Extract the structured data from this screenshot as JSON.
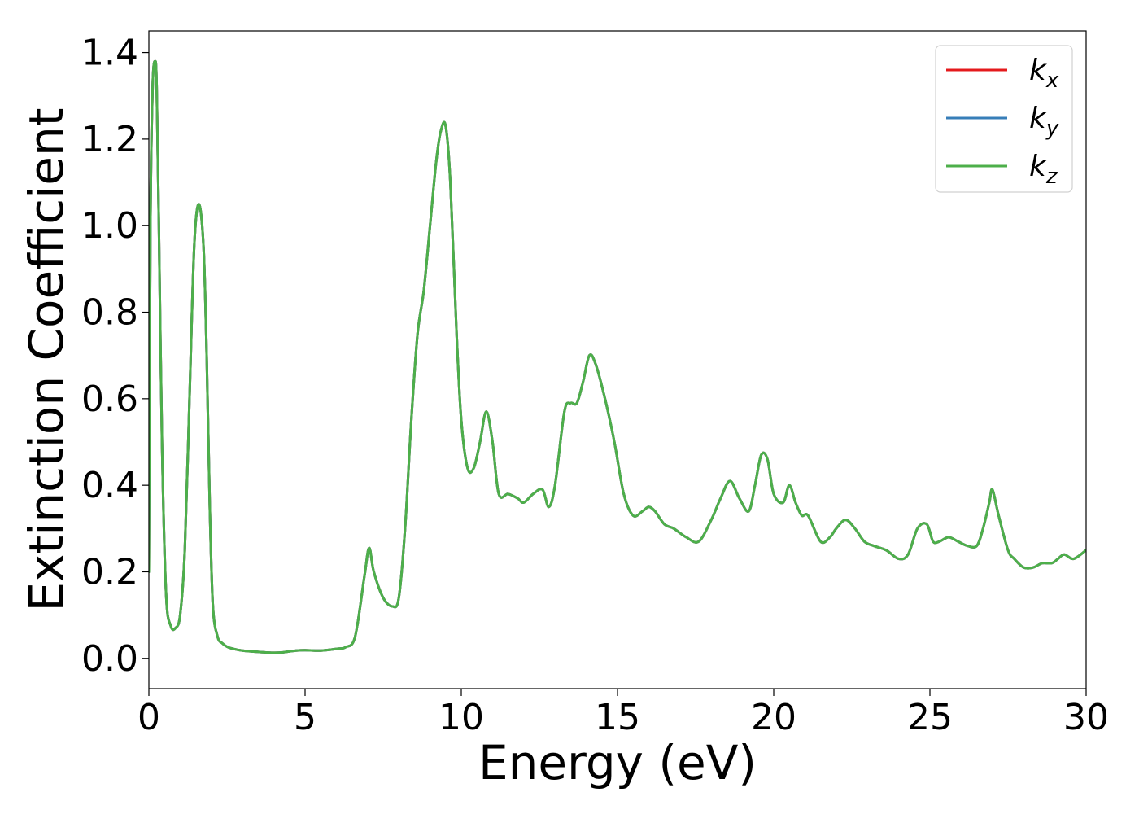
{
  "chart_data": {
    "type": "line",
    "xlabel": "Energy (eV)",
    "ylabel": "Extinction Coefficient",
    "xlim": [
      0,
      30
    ],
    "ylim": [
      -0.07,
      1.45
    ],
    "x_ticks": [
      0,
      5,
      10,
      15,
      20,
      25,
      30
    ],
    "y_ticks": [
      0.0,
      0.2,
      0.4,
      0.6,
      0.8,
      1.0,
      1.2,
      1.4
    ],
    "x_tick_labels": [
      "0",
      "5",
      "10",
      "15",
      "20",
      "25",
      "30"
    ],
    "y_tick_labels": [
      "0.0",
      "0.2",
      "0.4",
      "0.6",
      "0.8",
      "1.0",
      "1.2",
      "1.4"
    ],
    "grid": false,
    "legend_position": "top-right",
    "series": [
      {
        "name_base": "k",
        "name_sub": "x",
        "color": "#e41a1c"
      },
      {
        "name_base": "k",
        "name_sub": "y",
        "color": "#377eb8"
      },
      {
        "name_base": "k",
        "name_sub": "z",
        "color": "#4daf4a"
      }
    ],
    "x": [
      0.0,
      0.05,
      0.12,
      0.2,
      0.25,
      0.32,
      0.42,
      0.55,
      0.7,
      0.85,
      1.0,
      1.15,
      1.3,
      1.45,
      1.6,
      1.75,
      1.85,
      1.95,
      2.05,
      2.2,
      2.35,
      2.5,
      2.7,
      3.0,
      3.5,
      4.0,
      4.3,
      4.7,
      5.0,
      5.5,
      6.0,
      6.3,
      6.6,
      6.9,
      7.05,
      7.2,
      7.5,
      7.8,
      8.0,
      8.2,
      8.4,
      8.6,
      8.8,
      9.0,
      9.2,
      9.35,
      9.5,
      9.65,
      9.85,
      10.0,
      10.2,
      10.4,
      10.6,
      10.8,
      11.0,
      11.2,
      11.5,
      11.8,
      12.0,
      12.3,
      12.6,
      12.8,
      13.0,
      13.3,
      13.5,
      13.7,
      13.9,
      14.1,
      14.3,
      14.6,
      14.9,
      15.2,
      15.5,
      15.8,
      16.0,
      16.2,
      16.5,
      16.8,
      17.2,
      17.6,
      18.0,
      18.3,
      18.6,
      18.9,
      19.2,
      19.4,
      19.6,
      19.8,
      20.0,
      20.3,
      20.5,
      20.7,
      20.9,
      21.1,
      21.5,
      21.8,
      22.0,
      22.3,
      22.6,
      22.9,
      23.2,
      23.6,
      24.0,
      24.3,
      24.6,
      24.9,
      25.1,
      25.3,
      25.6,
      25.9,
      26.2,
      26.5,
      26.7,
      26.9,
      27.0,
      27.2,
      27.5,
      27.7,
      28.0,
      28.3,
      28.6,
      28.9,
      29.1,
      29.3,
      29.6,
      30.0
    ],
    "values": [
      0.2,
      1.0,
      1.32,
      1.38,
      1.32,
      1.0,
      0.5,
      0.15,
      0.075,
      0.07,
      0.1,
      0.25,
      0.6,
      0.95,
      1.05,
      0.95,
      0.7,
      0.35,
      0.12,
      0.05,
      0.035,
      0.027,
      0.022,
      0.018,
      0.015,
      0.013,
      0.014,
      0.018,
      0.019,
      0.018,
      0.022,
      0.026,
      0.05,
      0.19,
      0.255,
      0.2,
      0.14,
      0.12,
      0.14,
      0.3,
      0.55,
      0.75,
      0.85,
      1.0,
      1.15,
      1.22,
      1.23,
      1.1,
      0.75,
      0.55,
      0.44,
      0.44,
      0.5,
      0.57,
      0.5,
      0.38,
      0.38,
      0.37,
      0.36,
      0.38,
      0.39,
      0.35,
      0.4,
      0.57,
      0.59,
      0.59,
      0.64,
      0.7,
      0.68,
      0.6,
      0.5,
      0.38,
      0.33,
      0.34,
      0.35,
      0.34,
      0.31,
      0.3,
      0.28,
      0.27,
      0.32,
      0.37,
      0.41,
      0.37,
      0.34,
      0.4,
      0.47,
      0.46,
      0.38,
      0.36,
      0.4,
      0.36,
      0.33,
      0.33,
      0.27,
      0.28,
      0.3,
      0.32,
      0.3,
      0.27,
      0.26,
      0.25,
      0.23,
      0.24,
      0.3,
      0.31,
      0.27,
      0.27,
      0.28,
      0.27,
      0.26,
      0.26,
      0.3,
      0.36,
      0.39,
      0.33,
      0.25,
      0.23,
      0.21,
      0.21,
      0.22,
      0.22,
      0.23,
      0.24,
      0.23,
      0.25
    ]
  }
}
